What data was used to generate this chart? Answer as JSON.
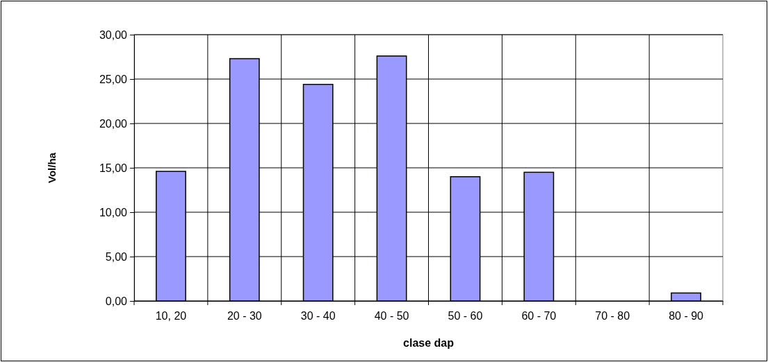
{
  "chart_data": {
    "type": "bar",
    "xlabel": "clase dap",
    "ylabel": "Vol/ha",
    "categories": [
      "10, 20",
      "20 - 30",
      "30 - 40",
      "40 - 50",
      "50 - 60",
      "60 - 70",
      "70 - 80",
      "80 - 90"
    ],
    "values": [
      14.6,
      27.3,
      24.4,
      27.6,
      14.0,
      14.5,
      0,
      0.9
    ],
    "color": "#9999ff",
    "ylim": [
      0,
      30
    ],
    "yticks": [
      {
        "value": 0,
        "label": "0,00"
      },
      {
        "value": 5,
        "label": "5,00"
      },
      {
        "value": 10,
        "label": "10,00"
      },
      {
        "value": 15,
        "label": "15,00"
      },
      {
        "value": 20,
        "label": "20,00"
      },
      {
        "value": 25,
        "label": "25,00"
      },
      {
        "value": 30,
        "label": "30,00"
      }
    ],
    "grid": true
  }
}
